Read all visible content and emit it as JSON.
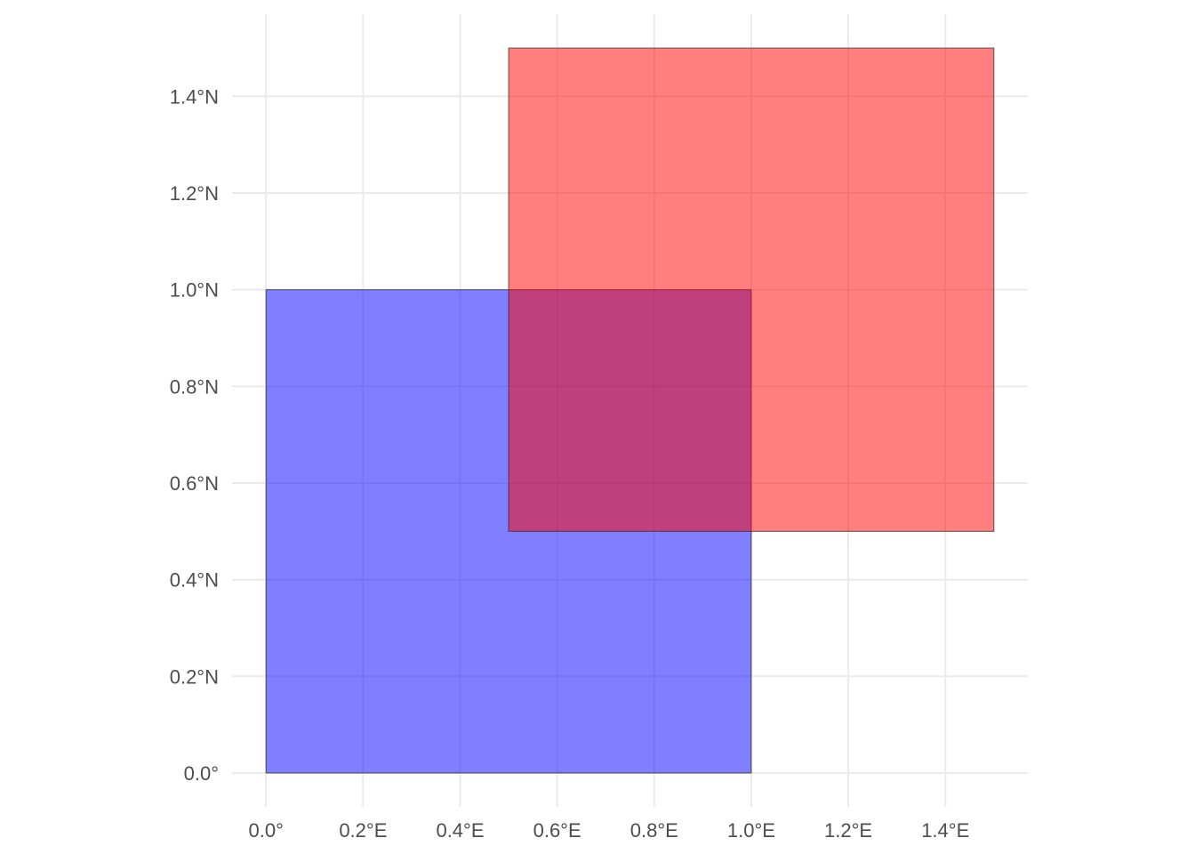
{
  "chart_data": {
    "type": "map",
    "xlim": [
      -0.07,
      1.57
    ],
    "ylim": [
      -0.07,
      1.57
    ],
    "x_ticks": [
      0.0,
      0.2,
      0.4,
      0.6,
      0.8,
      1.0,
      1.2,
      1.4
    ],
    "y_ticks": [
      0.0,
      0.2,
      0.4,
      0.6,
      0.8,
      1.0,
      1.2,
      1.4
    ],
    "x_tick_labels": [
      "0.0°",
      "0.2°E",
      "0.4°E",
      "0.6°E",
      "0.8°E",
      "1.0°E",
      "1.2°E",
      "1.4°E"
    ],
    "y_tick_labels": [
      "0.0°",
      "0.2°N",
      "0.4°N",
      "0.6°N",
      "0.8°N",
      "1.0°N",
      "1.2°N",
      "1.4°N"
    ],
    "grid": true,
    "legend": "none",
    "polygons": [
      {
        "xmin": 0.0,
        "xmax": 1.0,
        "ymin": 0.0,
        "ymax": 1.0,
        "fill": "#0000ff",
        "opacity": 0.5
      },
      {
        "xmin": 0.5,
        "xmax": 1.5,
        "ymin": 0.5,
        "ymax": 1.5,
        "fill": "#ff0000",
        "opacity": 0.5
      }
    ]
  }
}
